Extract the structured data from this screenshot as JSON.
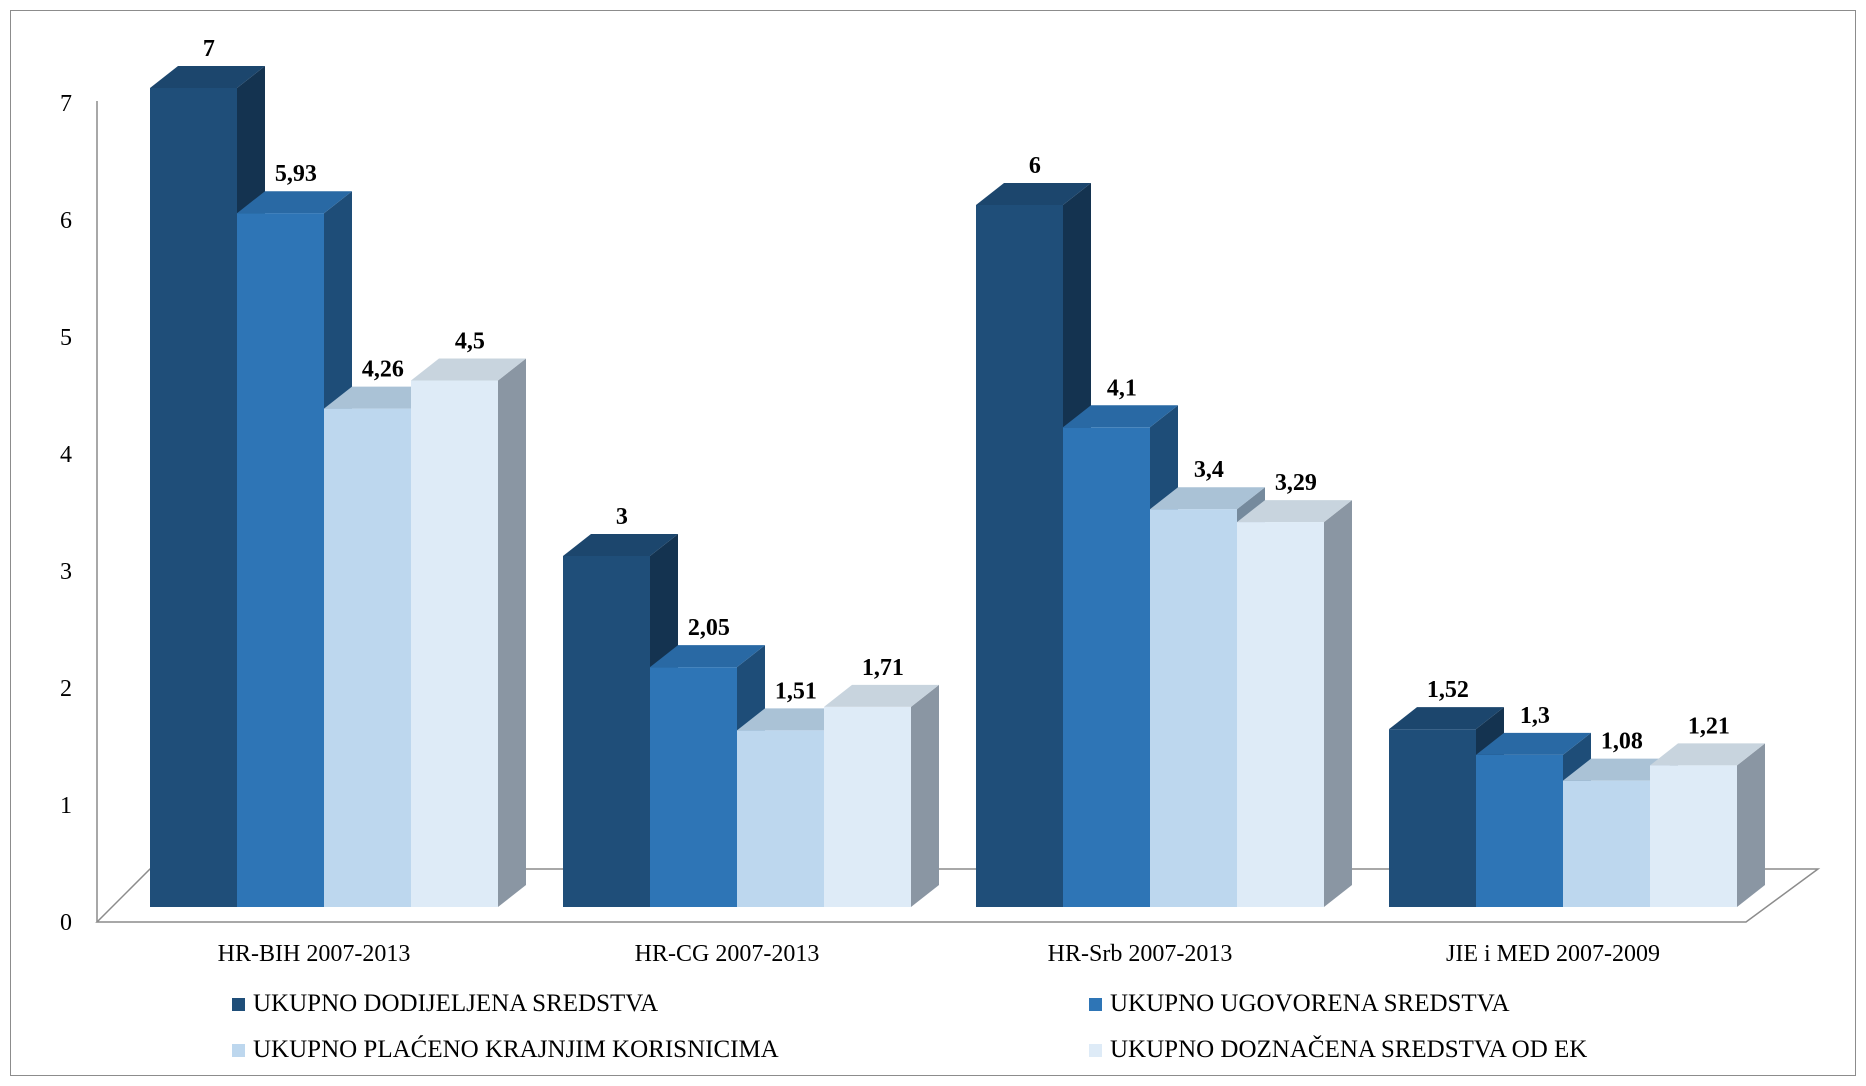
{
  "chart_data": {
    "type": "bar",
    "variant": "3d-clustered-column",
    "title": "",
    "xlabel": "",
    "ylabel": "",
    "ylim": [
      0,
      7
    ],
    "yticks": [
      "0",
      "1",
      "2",
      "3",
      "4",
      "5",
      "6",
      "7"
    ],
    "grid": false,
    "legend_position": "bottom",
    "categories": [
      "HR-BIH 2007-2013",
      "HR-CG 2007-2013",
      "HR-Srb 2007-2013",
      "JIE i MED 2007-2009"
    ],
    "series": [
      {
        "name": "UKUPNO DODIJELJENA SREDSTVA",
        "color": "#1f4e79",
        "values": [
          7,
          3,
          6,
          1.52
        ],
        "labels": [
          "7",
          "3",
          "6",
          "1,52"
        ]
      },
      {
        "name": "UKUPNO UGOVORENA SREDSTVA",
        "color": "#2e75b6",
        "values": [
          5.93,
          2.05,
          4.1,
          1.3
        ],
        "labels": [
          "5,93",
          "2,05",
          "4,1",
          "1,3"
        ]
      },
      {
        "name": "UKUPNO PLAĆENO KRAJNJIM KORISNICIMA",
        "color": "#bdd7ee",
        "values": [
          4.26,
          1.51,
          3.4,
          1.08
        ],
        "labels": [
          "4,26",
          "1,51",
          "3,4",
          "1,08"
        ]
      },
      {
        "name": "UKUPNO DOZNAČENA SREDSTVA OD EK",
        "color": "#deebf7",
        "values": [
          4.5,
          1.71,
          3.29,
          1.21
        ],
        "labels": [
          "4,5",
          "1,71",
          "3,29",
          "1,21"
        ]
      }
    ]
  }
}
